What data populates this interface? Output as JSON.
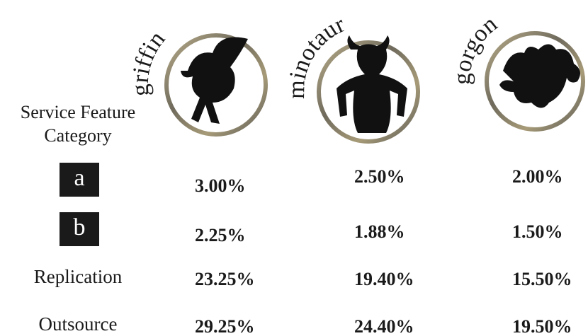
{
  "header": {
    "category_label": "Service Feature Category",
    "columns": [
      "griffin",
      "minotaur",
      "gorgon"
    ]
  },
  "table": {
    "rows": [
      {
        "label": "a",
        "values": [
          "3.00%",
          "2.50%",
          "2.00%"
        ]
      },
      {
        "label": "b",
        "values": [
          "2.25%",
          "1.88%",
          "1.50%"
        ]
      },
      {
        "label": "Replication",
        "values": [
          "23.25%",
          "19.40%",
          "15.50%"
        ]
      },
      {
        "label": "Outsource",
        "values": [
          "29.25%",
          "24.40%",
          "19.50%"
        ]
      }
    ]
  }
}
